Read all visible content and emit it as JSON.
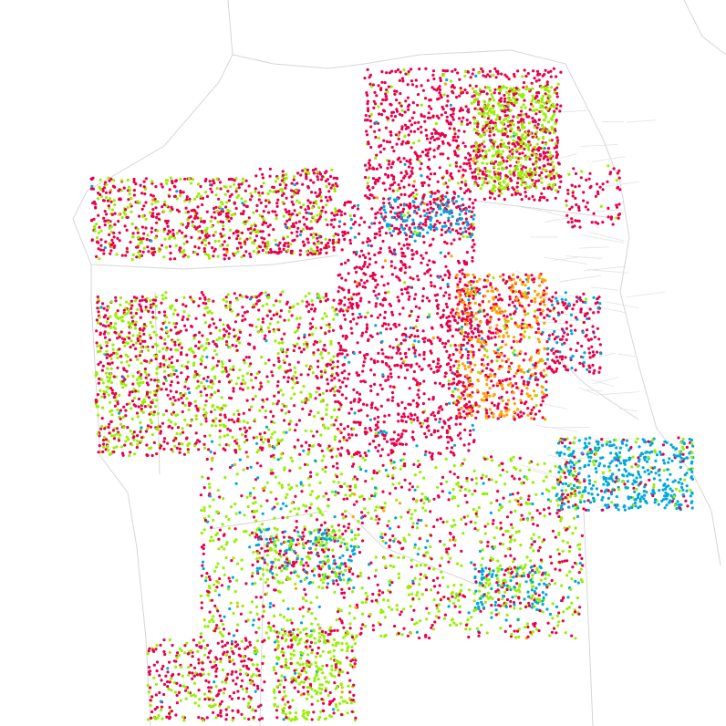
{
  "map": {
    "background_color": "#ffffff",
    "road_color": "#d6d6d6",
    "dot_colors": {
      "red": "#e8004a",
      "green": "#96f000",
      "blue": "#00a8dc",
      "orange": "#ffa300"
    }
  }
}
